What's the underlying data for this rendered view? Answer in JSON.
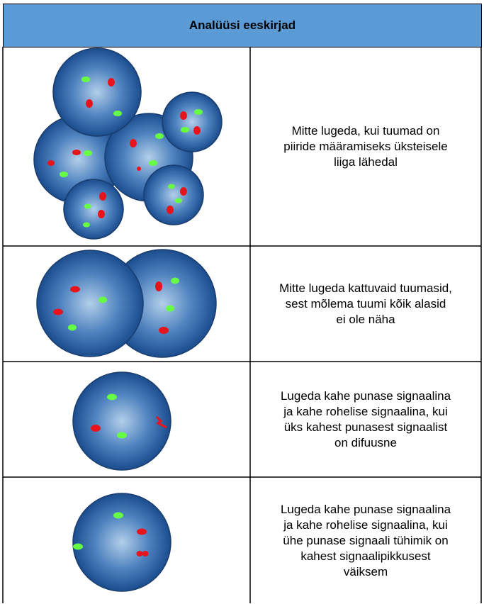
{
  "header": {
    "title": "Analüüsi eeskirjad"
  },
  "table": {
    "rows": [
      {
        "text": [
          "Mitte lugeda, kui tuumad on",
          "piiride määramiseks üksteisele",
          "liiga lähedal"
        ]
      },
      {
        "text": [
          "Mitte lugeda kattuvaid tuumasid,",
          "sest mõlema tuumi kõik alasid",
          "ei ole näha"
        ]
      },
      {
        "text": [
          "Lugeda kahe punase signaalina",
          "ja kahe rohelise signaalina, kui",
          "üks kahest punasest signaalist",
          "on difuusne"
        ]
      },
      {
        "text": [
          "Lugeda kahe punase signaalina",
          "ja kahe rohelise signaalina, kui",
          "ühe punase signaali tühimik on",
          "kahest signaalipikkusest",
          "väiksem"
        ]
      }
    ]
  }
}
